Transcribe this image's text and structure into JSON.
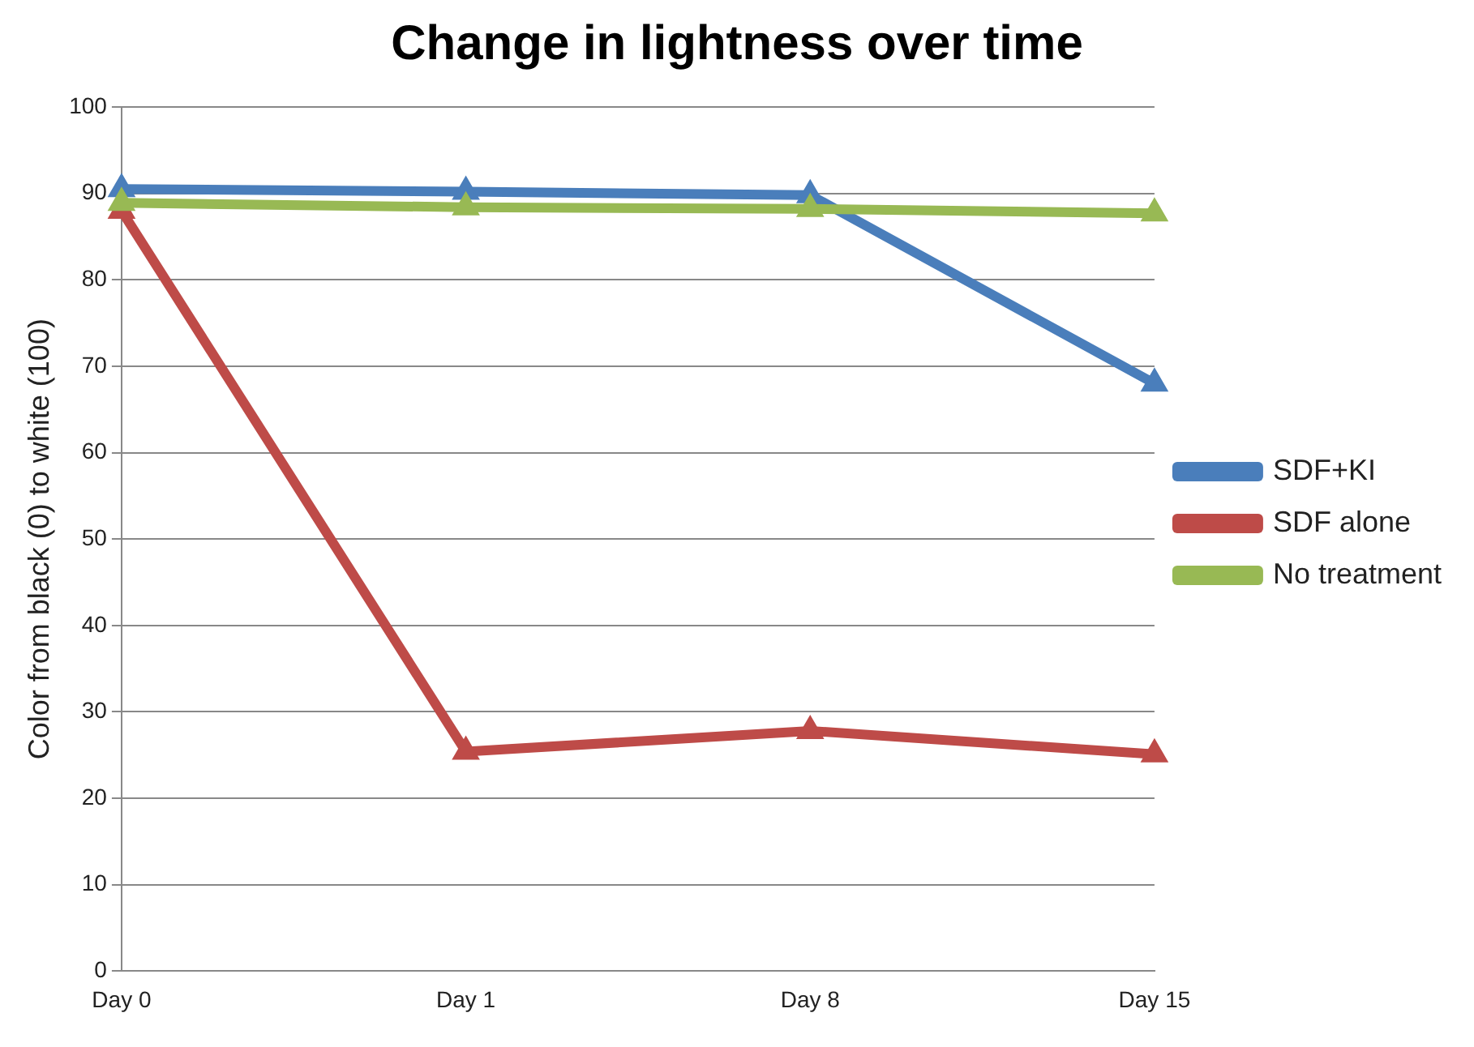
{
  "chart_data": {
    "type": "line",
    "title": "Change in lightness over time",
    "ylabel": "Color from black (0) to white (100)",
    "categories": [
      "Day 0",
      "Day 1",
      "Day 8",
      "Day 15"
    ],
    "series": [
      {
        "name": "SDF+KI",
        "color": "#4a7ebb",
        "values": [
          90.5,
          90.2,
          89.8,
          68
        ]
      },
      {
        "name": "SDF alone",
        "color": "#be4b48",
        "values": [
          88,
          25.4,
          27.8,
          25.1
        ]
      },
      {
        "name": "No treatment",
        "color": "#98b954",
        "values": [
          88.9,
          88.4,
          88.2,
          87.7
        ]
      }
    ],
    "ylim": [
      0,
      100
    ],
    "yticks": [
      0,
      10,
      20,
      30,
      40,
      50,
      60,
      70,
      80,
      90,
      100
    ],
    "grid": "y",
    "legend": "right",
    "marker": "triangle",
    "line_style": "solid"
  }
}
